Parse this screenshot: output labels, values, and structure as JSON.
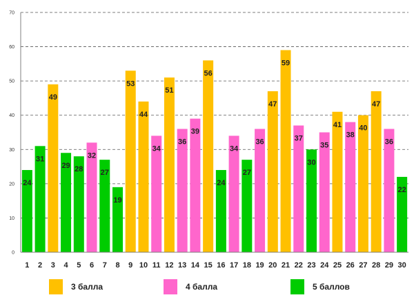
{
  "chart_data": {
    "type": "bar",
    "categories": [
      "1",
      "2",
      "3",
      "4",
      "5",
      "6",
      "7",
      "8",
      "9",
      "10",
      "11",
      "12",
      "13",
      "14",
      "15",
      "16",
      "17",
      "18",
      "19",
      "20",
      "21",
      "22",
      "23",
      "24",
      "25",
      "26",
      "27",
      "28",
      "29",
      "30"
    ],
    "values": [
      24,
      31,
      49,
      29,
      28,
      32,
      27,
      19,
      53,
      44,
      34,
      51,
      36,
      39,
      56,
      24,
      34,
      27,
      36,
      47,
      59,
      37,
      30,
      35,
      41,
      38,
      40,
      47,
      36,
      22
    ],
    "groups": [
      "5 баллов",
      "5 баллов",
      "3 балла",
      "5 баллов",
      "5 баллов",
      "4 балла",
      "5 баллов",
      "5 баллов",
      "3 балла",
      "3 балла",
      "4 балла",
      "3 балла",
      "4 балла",
      "4 балла",
      "3 балла",
      "5 баллов",
      "4 балла",
      "5 баллов",
      "4 балла",
      "3 балла",
      "3 балла",
      "4 балла",
      "5 баллов",
      "4 балла",
      "3 балла",
      "4 балла",
      "3 балла",
      "3 балла",
      "4 балла",
      "5 баллов"
    ],
    "ylim": [
      0,
      70
    ],
    "yticks": [
      "0",
      "10",
      "20",
      "30",
      "40",
      "50",
      "60",
      "70"
    ],
    "grid": true,
    "title": "",
    "xlabel": "",
    "ylabel": ""
  },
  "legend": [
    {
      "label": "3 балла",
      "color": "#ffc000"
    },
    {
      "label": "4 балла",
      "color": "#ff66cc"
    },
    {
      "label": "5 баллов",
      "color": "#00cc00"
    }
  ],
  "colors": {
    "3 балла": "#ffc000",
    "4 балла": "#ff66cc",
    "5 баллов": "#00cc00",
    "grid": "#555555",
    "axis": "#7f7f7f"
  }
}
